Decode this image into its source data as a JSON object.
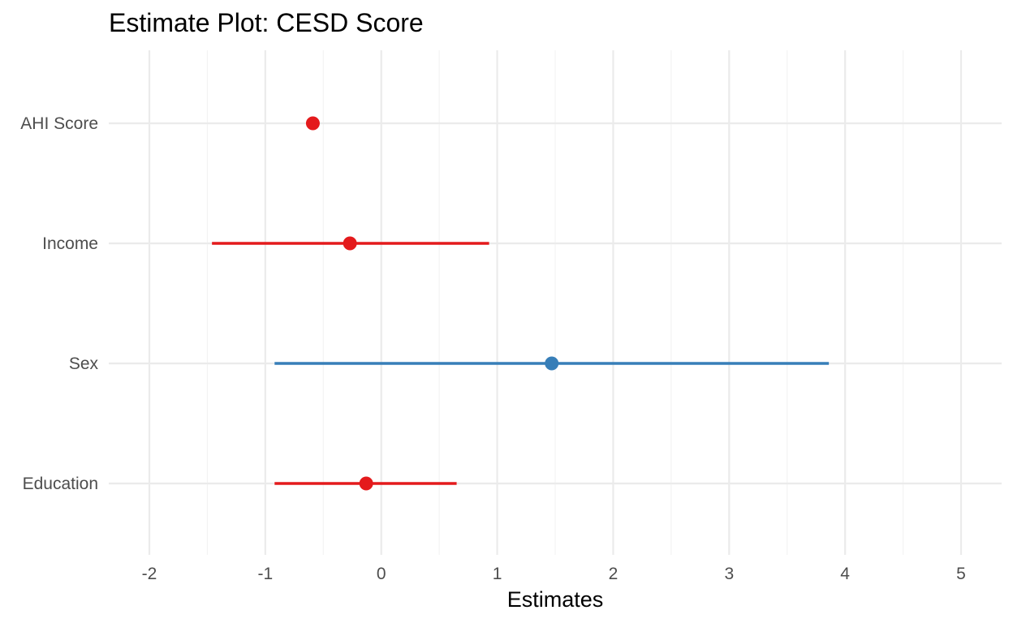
{
  "chart_data": {
    "type": "forest",
    "title": "Estimate Plot: CESD Score",
    "xlabel": "Estimates",
    "ylabel": "",
    "xlim": [
      -2.35,
      5.35
    ],
    "x_ticks": [
      "-2",
      "-1",
      "0",
      "1",
      "2",
      "3",
      "4",
      "5"
    ],
    "grid": true,
    "legend": "none",
    "categories": [
      "AHI Score",
      "Income",
      "Sex",
      "Education"
    ],
    "series": [
      {
        "points": [
          {
            "label": "AHI Score",
            "estimate": -0.59,
            "ci_low": -0.63,
            "ci_high": -0.55,
            "color": "#e41a1c"
          },
          {
            "label": "Income",
            "estimate": -0.27,
            "ci_low": -1.46,
            "ci_high": 0.93,
            "color": "#e41a1c"
          },
          {
            "label": "Sex",
            "estimate": 1.47,
            "ci_low": -0.92,
            "ci_high": 3.86,
            "color": "#377eb8"
          },
          {
            "label": "Education",
            "estimate": -0.13,
            "ci_low": -0.92,
            "ci_high": 0.65,
            "color": "#e41a1c"
          }
        ]
      }
    ],
    "colors": {
      "negative": "#e41a1c",
      "positive": "#377eb8",
      "grid": "#ebebeb"
    }
  }
}
